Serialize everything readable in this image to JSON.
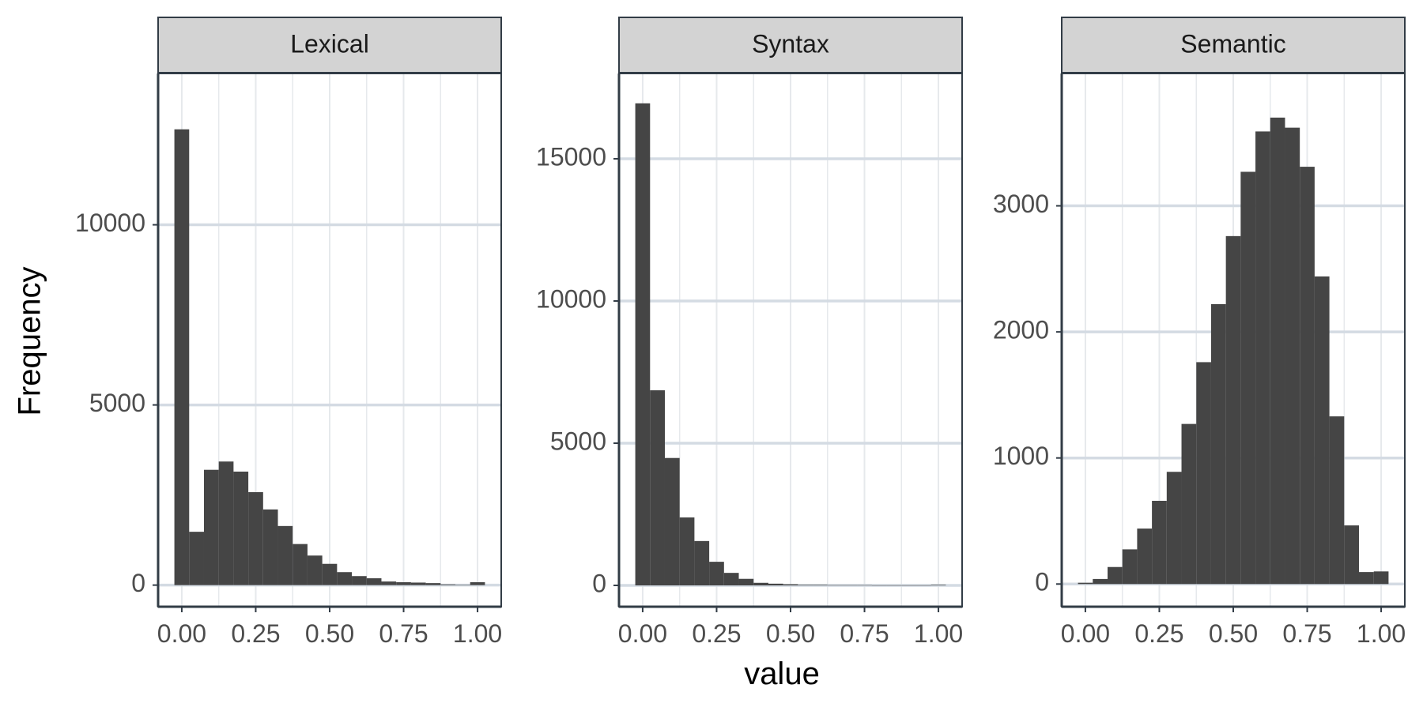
{
  "chart_data": {
    "type": "bar",
    "ylabel": "Frequency",
    "xlabel": "value",
    "x_ticks": [
      0,
      0.25,
      0.5,
      0.75,
      1
    ],
    "x_tick_labels": [
      "0.00",
      "0.25",
      "0.50",
      "0.75",
      "1.00"
    ],
    "xlim": [
      -0.08,
      1.08
    ],
    "bin_width": 0.05,
    "bin_centers": [
      0,
      0.05,
      0.1,
      0.15,
      0.2,
      0.25,
      0.3,
      0.35,
      0.4,
      0.45,
      0.5,
      0.55,
      0.6,
      0.65,
      0.7,
      0.75,
      0.8,
      0.85,
      0.9,
      0.95,
      1.0
    ],
    "grid": true,
    "panels": [
      {
        "title": "Lexical",
        "ylim": [
          -600,
          14200
        ],
        "y_ticks": [
          0,
          5000,
          10000
        ],
        "y_tick_labels": [
          "0",
          "5000",
          "10000"
        ],
        "values": [
          12650,
          1480,
          3200,
          3430,
          3150,
          2580,
          2100,
          1640,
          1140,
          820,
          590,
          360,
          250,
          190,
          100,
          80,
          70,
          55,
          20,
          10,
          80
        ]
      },
      {
        "title": "Syntax",
        "ylim": [
          -750,
          18000
        ],
        "y_ticks": [
          0,
          5000,
          10000,
          15000
        ],
        "y_tick_labels": [
          "0",
          "5000",
          "10000",
          "15000"
        ],
        "values": [
          16950,
          6860,
          4480,
          2390,
          1560,
          830,
          440,
          230,
          90,
          60,
          40,
          20,
          20,
          10,
          10,
          10,
          5,
          5,
          5,
          5,
          20
        ]
      },
      {
        "title": "Semantic",
        "ylim": [
          -180,
          4050
        ],
        "y_ticks": [
          0,
          1000,
          2000,
          3000
        ],
        "y_tick_labels": [
          "0",
          "1000",
          "2000",
          "3000"
        ],
        "values": [
          10,
          40,
          135,
          275,
          440,
          660,
          890,
          1270,
          1760,
          2220,
          2760,
          3270,
          3590,
          3700,
          3620,
          3310,
          2440,
          1330,
          465,
          95,
          100
        ]
      }
    ]
  }
}
